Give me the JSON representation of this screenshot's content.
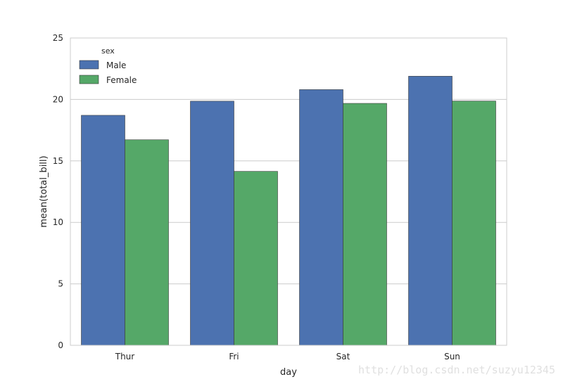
{
  "chart_data": {
    "type": "bar",
    "title": "",
    "xlabel": "day",
    "ylabel": "mean(total_bill)",
    "categories": [
      "Thur",
      "Fri",
      "Sat",
      "Sun"
    ],
    "series": [
      {
        "name": "Male",
        "color": "#4c72b0",
        "values": [
          18.71,
          19.86,
          20.8,
          21.89
        ]
      },
      {
        "name": "Female",
        "color": "#55a868",
        "values": [
          16.72,
          14.15,
          19.68,
          19.87
        ]
      }
    ],
    "ylim": [
      0,
      25
    ],
    "yticks": [
      "0",
      "5",
      "10",
      "15",
      "20",
      "25"
    ],
    "grid": "horizontal",
    "legend": {
      "title": "sex",
      "placement": "top-left"
    }
  },
  "watermark": "http://blog.csdn.net/suzyu12345"
}
